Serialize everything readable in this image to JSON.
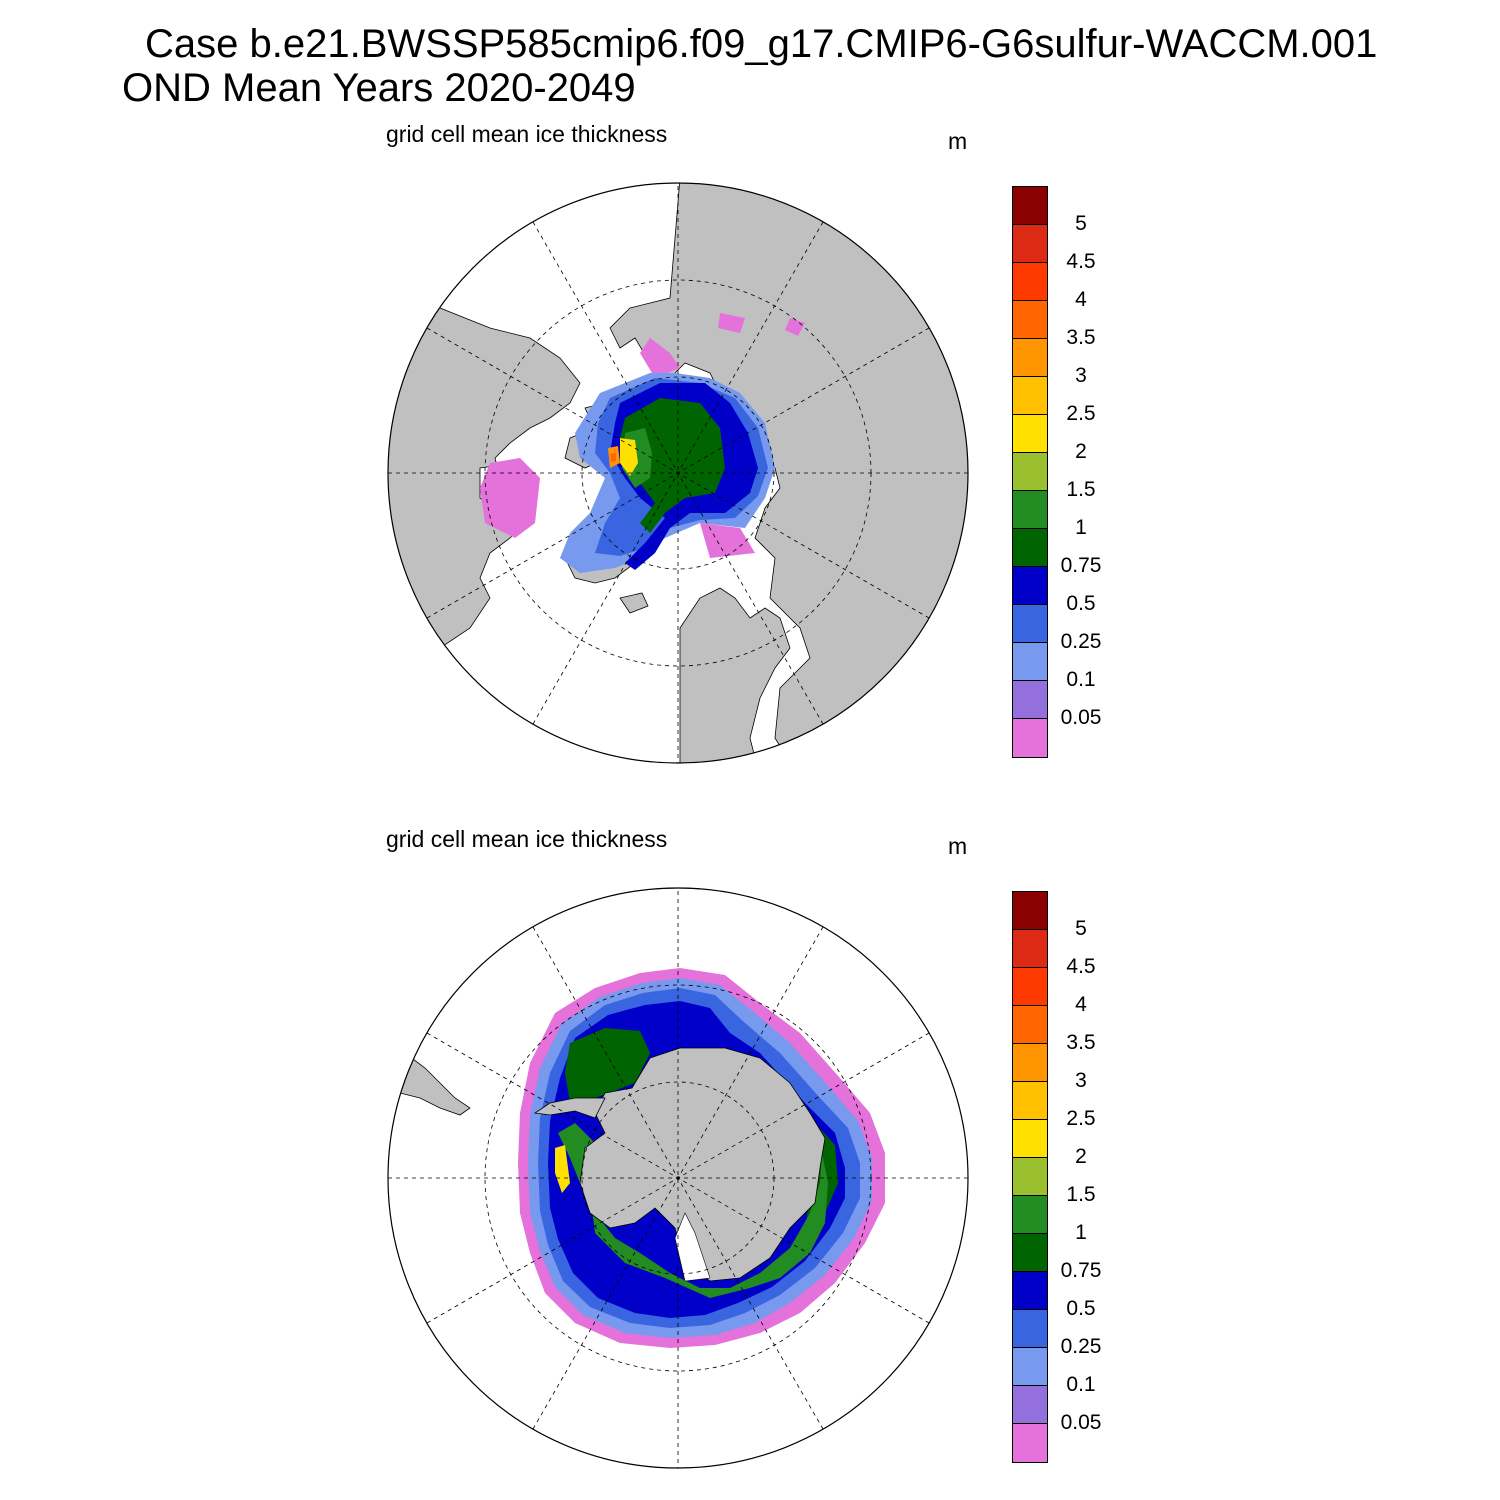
{
  "title": {
    "line1": "Case b.e21.BWSSP585cmip6.f09_g17.CMIP6-G6sulfur-WACCM.001",
    "line2": "OND Mean   Years 2020-2049"
  },
  "panels": [
    {
      "id": "north",
      "label": "grid cell mean ice thickness",
      "unit": "m",
      "hemisphere": "Arctic"
    },
    {
      "id": "south",
      "label": "grid cell mean ice thickness",
      "unit": "m",
      "hemisphere": "Antarctic"
    }
  ],
  "colorbar": {
    "ticks": [
      "5",
      "4.5",
      "4",
      "3.5",
      "3",
      "2.5",
      "2",
      "1.5",
      "1",
      "0.75",
      "0.5",
      "0.25",
      "0.1",
      "0.05"
    ],
    "colors": [
      "#8b0000",
      "#dc2a14",
      "#ff3a00",
      "#ff6600",
      "#ff9500",
      "#ffc000",
      "#ffe000",
      "#9abf2f",
      "#228b22",
      "#006400",
      "#0000c8",
      "#3a65e0",
      "#7799ee",
      "#9370db",
      "#e472da"
    ]
  },
  "map_colors": {
    "land": "#c0c0c0",
    "ocean": "#ffffff",
    "grid": "#000000"
  }
}
